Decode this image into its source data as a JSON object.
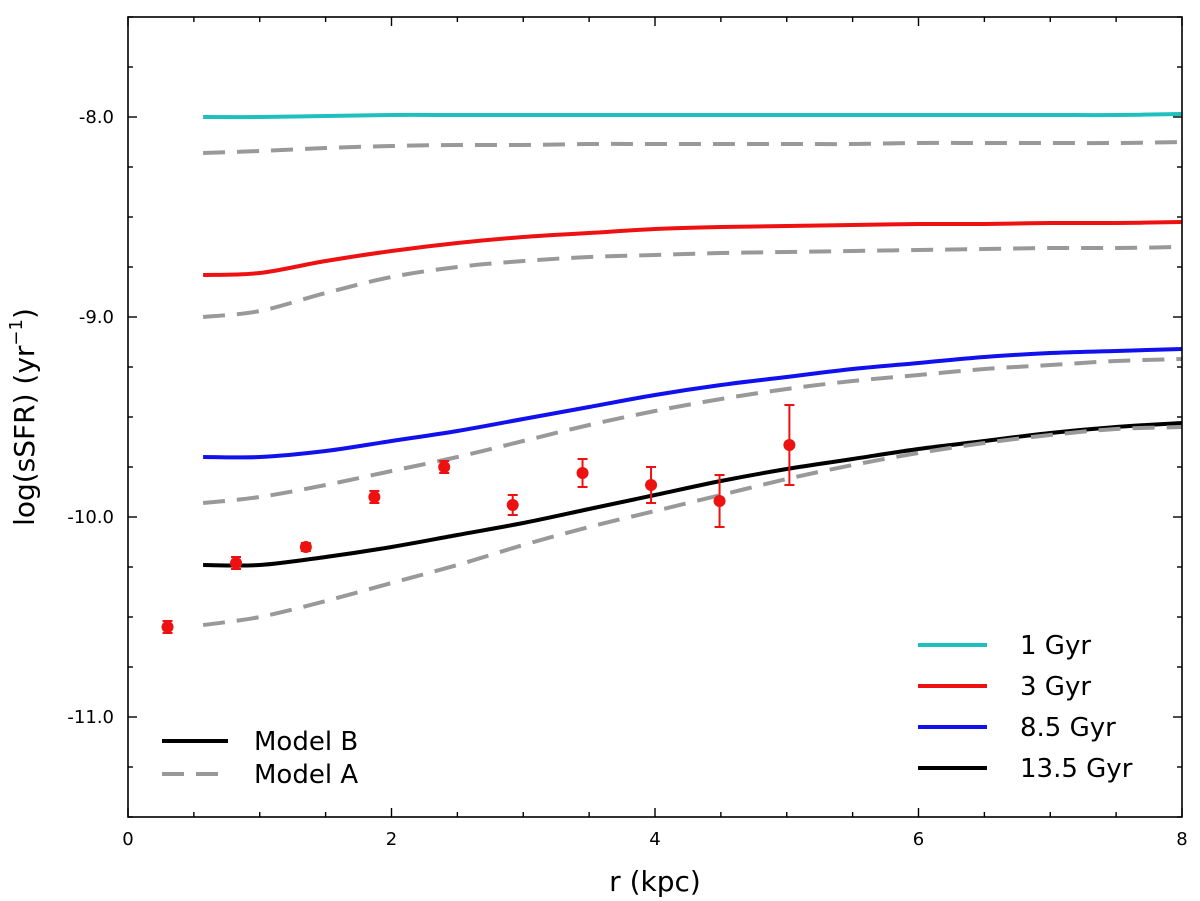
{
  "chart_data": {
    "type": "line",
    "title": "",
    "xlabel": "r (kpc)",
    "ylabel_main": "log(sSFR) (yr",
    "ylabel_sup": "−1",
    "ylabel_close": ")",
    "xlim": [
      0,
      8
    ],
    "ylim": [
      -11.5,
      -7.5
    ],
    "x_major_ticks": [
      0,
      2,
      4,
      6,
      8
    ],
    "x_tick_labels": [
      "0",
      "2",
      "4",
      "6",
      "8"
    ],
    "y_major_ticks": [
      -11.0,
      -10.0,
      -9.0,
      -8.0
    ],
    "y_tick_labels": [
      "-11.0",
      "-10.0",
      "-9.0",
      "-8.0"
    ],
    "x_minor_step": 0.5,
    "y_minor_step": 0.25,
    "grid": false,
    "x": [
      0.57,
      1.0,
      1.5,
      2.0,
      2.5,
      3.0,
      3.5,
      4.0,
      4.5,
      5.0,
      5.5,
      6.0,
      6.5,
      7.0,
      7.5,
      8.0
    ],
    "series": [
      {
        "name": "1 Gyr Model B",
        "color": "#1fbfbf",
        "style": "solid",
        "values": [
          -8.0,
          -8.0,
          -7.995,
          -7.99,
          -7.99,
          -7.99,
          -7.99,
          -7.99,
          -7.99,
          -7.99,
          -7.99,
          -7.99,
          -7.99,
          -7.99,
          -7.99,
          -7.985
        ]
      },
      {
        "name": "1 Gyr Model A",
        "color": "#999999",
        "style": "dashed",
        "values": [
          -8.18,
          -8.17,
          -8.155,
          -8.145,
          -8.14,
          -8.14,
          -8.135,
          -8.135,
          -8.135,
          -8.135,
          -8.135,
          -8.13,
          -8.13,
          -8.13,
          -8.13,
          -8.125
        ]
      },
      {
        "name": "3 Gyr Model B",
        "color": "#ee1111",
        "style": "solid",
        "values": [
          -8.79,
          -8.78,
          -8.72,
          -8.67,
          -8.63,
          -8.6,
          -8.58,
          -8.56,
          -8.55,
          -8.545,
          -8.54,
          -8.535,
          -8.535,
          -8.53,
          -8.53,
          -8.525
        ]
      },
      {
        "name": "3 Gyr Model A",
        "color": "#999999",
        "style": "dashed",
        "values": [
          -9.0,
          -8.97,
          -8.88,
          -8.8,
          -8.75,
          -8.72,
          -8.7,
          -8.69,
          -8.68,
          -8.675,
          -8.67,
          -8.665,
          -8.66,
          -8.655,
          -8.655,
          -8.65
        ]
      },
      {
        "name": "8.5 Gyr Model B",
        "color": "#1111ee",
        "style": "solid",
        "values": [
          -9.7,
          -9.7,
          -9.67,
          -9.62,
          -9.57,
          -9.51,
          -9.45,
          -9.39,
          -9.34,
          -9.3,
          -9.26,
          -9.23,
          -9.2,
          -9.18,
          -9.17,
          -9.16
        ]
      },
      {
        "name": "8.5 Gyr Model A",
        "color": "#999999",
        "style": "dashed",
        "values": [
          -9.93,
          -9.9,
          -9.84,
          -9.77,
          -9.7,
          -9.62,
          -9.54,
          -9.47,
          -9.41,
          -9.36,
          -9.32,
          -9.29,
          -9.26,
          -9.24,
          -9.22,
          -9.21
        ]
      },
      {
        "name": "13.5 Gyr Model B",
        "color": "#000000",
        "style": "solid",
        "values": [
          -10.24,
          -10.24,
          -10.2,
          -10.15,
          -10.09,
          -10.03,
          -9.96,
          -9.89,
          -9.82,
          -9.76,
          -9.71,
          -9.66,
          -9.62,
          -9.58,
          -9.55,
          -9.53
        ]
      },
      {
        "name": "13.5 Gyr Model A",
        "color": "#999999",
        "style": "dashed",
        "values": [
          -10.54,
          -10.5,
          -10.42,
          -10.33,
          -10.24,
          -10.14,
          -10.05,
          -9.97,
          -9.89,
          -9.81,
          -9.74,
          -9.68,
          -9.63,
          -9.59,
          -9.56,
          -9.55
        ]
      }
    ],
    "observations": {
      "color": "#ee1111",
      "points": [
        {
          "x": 0.3,
          "y": -10.55,
          "err": 0.03
        },
        {
          "x": 0.82,
          "y": -10.23,
          "err": 0.03
        },
        {
          "x": 1.35,
          "y": -10.15,
          "err": 0.02
        },
        {
          "x": 1.87,
          "y": -9.9,
          "err": 0.03
        },
        {
          "x": 2.4,
          "y": -9.75,
          "err": 0.03
        },
        {
          "x": 2.92,
          "y": -9.94,
          "err": 0.05
        },
        {
          "x": 3.45,
          "y": -9.78,
          "err": 0.07
        },
        {
          "x": 3.97,
          "y": -9.84,
          "err": 0.09
        },
        {
          "x": 4.49,
          "y": -9.92,
          "err": 0.13
        },
        {
          "x": 5.02,
          "y": -9.64,
          "err": 0.2
        }
      ]
    },
    "legend_ages": {
      "position": "bottom-right",
      "entries": [
        {
          "label": "1 Gyr",
          "color": "#1fbfbf"
        },
        {
          "label": "3 Gyr",
          "color": "#ee1111"
        },
        {
          "label": "8.5 Gyr",
          "color": "#1111ee"
        },
        {
          "label": "13.5 Gyr",
          "color": "#000000"
        }
      ]
    },
    "legend_models": {
      "position": "bottom-left",
      "entries": [
        {
          "label": "Model B",
          "color": "#000000",
          "style": "solid"
        },
        {
          "label": "Model A",
          "color": "#999999",
          "style": "dashed"
        }
      ]
    }
  }
}
